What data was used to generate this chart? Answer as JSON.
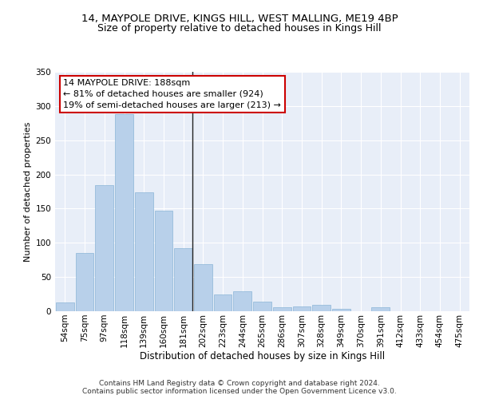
{
  "title1": "14, MAYPOLE DRIVE, KINGS HILL, WEST MALLING, ME19 4BP",
  "title2": "Size of property relative to detached houses in Kings Hill",
  "xlabel": "Distribution of detached houses by size in Kings Hill",
  "ylabel": "Number of detached properties",
  "categories": [
    "54sqm",
    "75sqm",
    "97sqm",
    "118sqm",
    "139sqm",
    "160sqm",
    "181sqm",
    "202sqm",
    "223sqm",
    "244sqm",
    "265sqm",
    "286sqm",
    "307sqm",
    "328sqm",
    "349sqm",
    "370sqm",
    "391sqm",
    "412sqm",
    "433sqm",
    "454sqm",
    "475sqm"
  ],
  "values": [
    13,
    85,
    184,
    288,
    174,
    147,
    92,
    69,
    25,
    29,
    14,
    6,
    7,
    9,
    3,
    0,
    6,
    0,
    0,
    0,
    0
  ],
  "bar_color": "#b8d0ea",
  "bar_edge_color": "#7aaad0",
  "vline_index": 6,
  "annotation_text": "14 MAYPOLE DRIVE: 188sqm\n← 81% of detached houses are smaller (924)\n19% of semi-detached houses are larger (213) →",
  "annotation_box_color": "#ffffff",
  "annotation_box_edge": "#cc0000",
  "ylim": [
    0,
    350
  ],
  "yticks": [
    0,
    50,
    100,
    150,
    200,
    250,
    300,
    350
  ],
  "background_color": "#e8eef8",
  "grid_color": "#ffffff",
  "footer1": "Contains HM Land Registry data © Crown copyright and database right 2024.",
  "footer2": "Contains public sector information licensed under the Open Government Licence v3.0.",
  "title1_fontsize": 9.5,
  "title2_fontsize": 9,
  "xlabel_fontsize": 8.5,
  "ylabel_fontsize": 8,
  "tick_fontsize": 7.5,
  "annotation_fontsize": 8,
  "footer_fontsize": 6.5
}
